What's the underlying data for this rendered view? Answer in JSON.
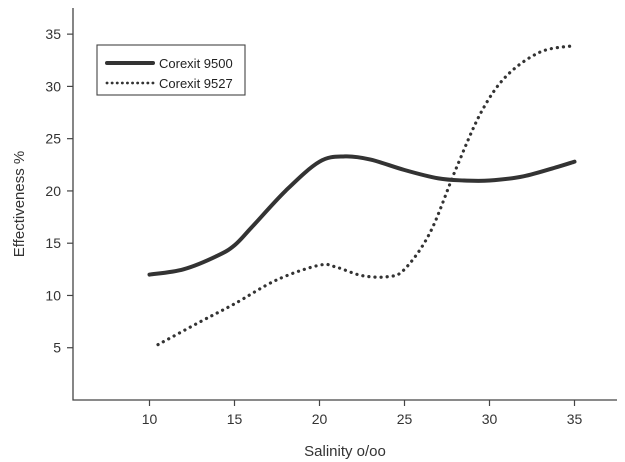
{
  "chart_data": {
    "type": "line",
    "title": "",
    "xlabel": "Salinity o/oo",
    "ylabel": "Effectiveness %",
    "xlim": [
      5.5,
      37.5
    ],
    "ylim": [
      0,
      37.5
    ],
    "xticks": [
      10,
      15,
      20,
      25,
      30,
      35
    ],
    "yticks": [
      5,
      10,
      15,
      20,
      25,
      30,
      35
    ],
    "grid": false,
    "legend_position": "top-left",
    "series": [
      {
        "name": "Corexit 9500",
        "style": "solid",
        "color": "#333333",
        "points": [
          [
            10,
            12.0
          ],
          [
            12,
            12.5
          ],
          [
            14,
            13.8
          ],
          [
            15,
            14.8
          ],
          [
            16,
            16.5
          ],
          [
            18,
            20.0
          ],
          [
            20,
            22.8
          ],
          [
            21.5,
            23.3
          ],
          [
            23,
            23.0
          ],
          [
            25,
            22.0
          ],
          [
            27,
            21.2
          ],
          [
            28.5,
            21.0
          ],
          [
            30,
            21.0
          ],
          [
            32,
            21.4
          ],
          [
            34,
            22.3
          ],
          [
            35,
            22.8
          ]
        ]
      },
      {
        "name": "Corexit 9527",
        "style": "dotted",
        "color": "#333333",
        "points": [
          [
            10.5,
            5.3
          ],
          [
            13,
            7.5
          ],
          [
            15,
            9.2
          ],
          [
            17.5,
            11.5
          ],
          [
            20,
            12.9
          ],
          [
            21,
            12.7
          ],
          [
            22.5,
            11.9
          ],
          [
            24,
            11.8
          ],
          [
            25,
            12.5
          ],
          [
            26.5,
            16.0
          ],
          [
            28,
            22.0
          ],
          [
            29.5,
            27.5
          ],
          [
            31,
            31.0
          ],
          [
            33,
            33.3
          ],
          [
            35,
            33.9
          ]
        ]
      }
    ]
  }
}
